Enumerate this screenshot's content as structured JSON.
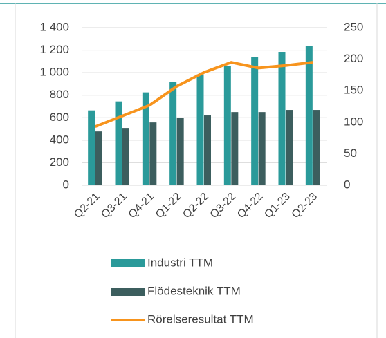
{
  "chart_data": {
    "type": "bar",
    "categories": [
      "Q2-21",
      "Q3-21",
      "Q4-21",
      "Q1-22",
      "Q2-22",
      "Q3-22",
      "Q4-22",
      "Q1-23",
      "Q2-23"
    ],
    "series": [
      {
        "name": "Industri TTM",
        "color": "#2a9a9a",
        "values": [
          665,
          745,
          825,
          915,
          985,
          1060,
          1140,
          1185,
          1235
        ]
      },
      {
        "name": "Flödesteknik TTM",
        "color": "#3c5e5e",
        "values": [
          478,
          509,
          558,
          601,
          620,
          650,
          650,
          669,
          669
        ]
      },
      {
        "name": "Rörelseresultat TTM",
        "color": "#f7941d",
        "type": "line",
        "axis": "y2",
        "values": [
          93,
          110,
          127,
          157,
          179,
          195,
          186,
          190,
          195
        ]
      }
    ],
    "ylim": [
      0,
      1400
    ],
    "yticks": [
      0,
      200,
      400,
      600,
      800,
      {
        "value": 1000,
        "label": "1 000"
      },
      {
        "value": 1200,
        "label": "1 200"
      },
      {
        "value": 1400,
        "label": "1 400"
      }
    ],
    "y2lim": [
      0,
      250
    ],
    "y2ticks": [
      0,
      50,
      100,
      150,
      200,
      250
    ],
    "grid": true,
    "legend": "bottom"
  }
}
